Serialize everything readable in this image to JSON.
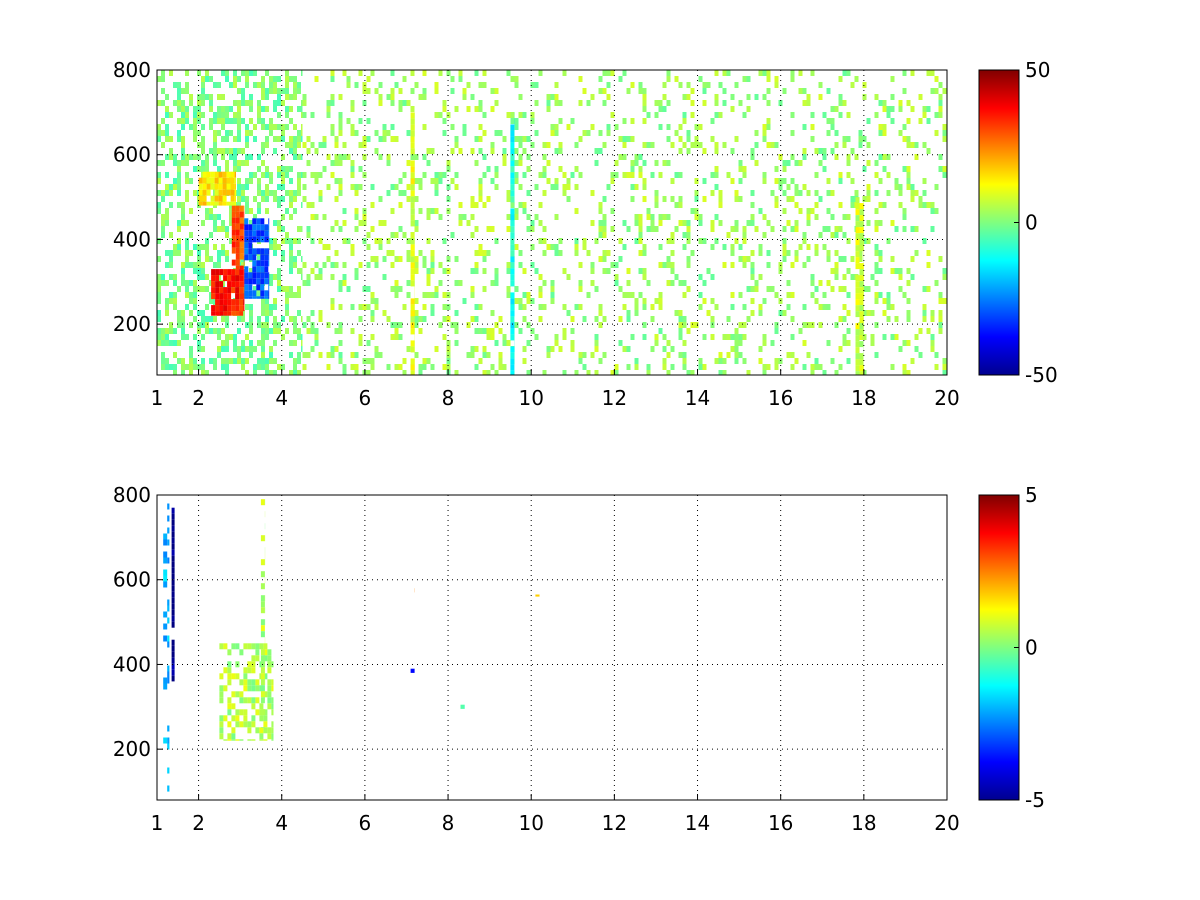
{
  "chart_data": [
    {
      "type": "heatmap",
      "title": "",
      "xlabel": "",
      "ylabel": "",
      "xlim": [
        1,
        20
      ],
      "ylim": [
        80,
        800
      ],
      "xticks": [
        1,
        2,
        4,
        6,
        8,
        10,
        12,
        14,
        16,
        18,
        20
      ],
      "yticks": [
        200,
        400,
        600,
        800
      ],
      "grid": true,
      "colormap": "jet",
      "clim": [
        -50,
        50
      ],
      "colorbar_ticks": [
        -50,
        0,
        50
      ],
      "features": [
        {
          "x": [
            1.0,
            4.5
          ],
          "y": [
            80,
            800
          ],
          "value": 0,
          "density": 0.45
        },
        {
          "x": [
            2.3,
            3.1
          ],
          "y": [
            220,
            330
          ],
          "value": 35
        },
        {
          "x": [
            2.8,
            3.1
          ],
          "y": [
            330,
            480
          ],
          "value": 30
        },
        {
          "x": [
            3.1,
            3.7
          ],
          "y": [
            260,
            450
          ],
          "value": -30
        },
        {
          "x": [
            2.0,
            2.9
          ],
          "y": [
            480,
            560
          ],
          "value": 15
        },
        {
          "x": [
            4.5,
            20.0
          ],
          "y": [
            80,
            800
          ],
          "value": 3,
          "density": 0.2
        },
        {
          "x": [
            7.1,
            7.2
          ],
          "y": [
            80,
            700
          ],
          "value": 10
        },
        {
          "x": [
            9.5,
            9.6
          ],
          "y": [
            80,
            700
          ],
          "value": -10
        },
        {
          "x": [
            17.8,
            18.0
          ],
          "y": [
            80,
            500
          ],
          "value": 8
        }
      ]
    },
    {
      "type": "heatmap",
      "title": "",
      "xlabel": "",
      "ylabel": "",
      "xlim": [
        1,
        20
      ],
      "ylim": [
        80,
        800
      ],
      "xticks": [
        1,
        2,
        4,
        6,
        8,
        10,
        12,
        14,
        16,
        18,
        20
      ],
      "yticks": [
        200,
        400,
        600,
        800
      ],
      "grid": true,
      "colormap": "jet",
      "clim": [
        -5,
        5
      ],
      "colorbar_ticks": [
        -5,
        0,
        5
      ],
      "features": [
        {
          "x": [
            1.35,
            1.4
          ],
          "y": [
            360,
            770
          ],
          "value": -5
        },
        {
          "x": [
            1.15,
            1.3
          ],
          "y": [
            100,
            780
          ],
          "value": -2,
          "density": 0.3
        },
        {
          "x": [
            2.5,
            3.8
          ],
          "y": [
            220,
            450
          ],
          "value": 0.5,
          "density": 0.5
        },
        {
          "x": [
            3.5,
            3.6
          ],
          "y": [
            250,
            790
          ],
          "value": 0.5,
          "density": 0.5
        },
        {
          "x": [
            7.1,
            7.2
          ],
          "y": [
            570,
            580
          ],
          "value": 3
        },
        {
          "x": [
            7.1,
            7.2
          ],
          "y": [
            380,
            390
          ],
          "value": -4
        },
        {
          "x": [
            8.3,
            8.4
          ],
          "y": [
            295,
            305
          ],
          "value": -1
        },
        {
          "x": [
            10.1,
            10.2
          ],
          "y": [
            560,
            565
          ],
          "value": 2
        }
      ]
    }
  ]
}
